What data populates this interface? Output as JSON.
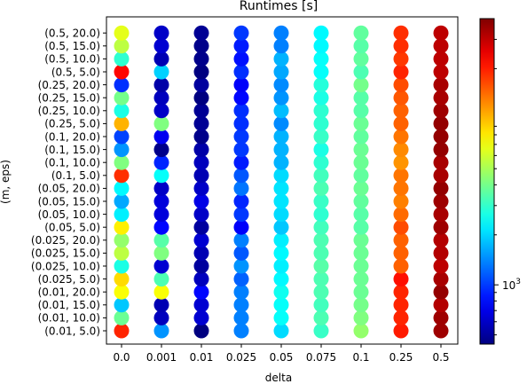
{
  "chart_data": {
    "type": "scatter",
    "title": "Runtimes [s]",
    "xlabel": "delta",
    "ylabel": "(m, eps)",
    "x_categories": [
      "0.0",
      "0.001",
      "0.01",
      "0.025",
      "0.05",
      "0.075",
      "0.1",
      "0.25",
      "0.5"
    ],
    "y_categories": [
      "(0.01, 5.0)",
      "(0.01, 10.0)",
      "(0.01, 15.0)",
      "(0.01, 20.0)",
      "(0.025, 5.0)",
      "(0.025, 10.0)",
      "(0.025, 15.0)",
      "(0.025, 20.0)",
      "(0.05, 5.0)",
      "(0.05, 10.0)",
      "(0.05, 15.0)",
      "(0.05, 20.0)",
      "(0.1, 5.0)",
      "(0.1, 10.0)",
      "(0.1, 15.0)",
      "(0.1, 20.0)",
      "(0.25, 5.0)",
      "(0.25, 10.0)",
      "(0.25, 15.0)",
      "(0.25, 20.0)",
      "(0.5, 5.0)",
      "(0.5, 10.0)",
      "(0.5, 15.0)",
      "(0.5, 20.0)"
    ],
    "color_scale": {
      "colormap": "jet",
      "scale": "log",
      "label": "",
      "tick_label": "10",
      "tick_exponent": "3",
      "tick_value": 1000,
      "range": [
        440,
        40000
      ]
    },
    "values": [
      [
        0.84,
        0.27,
        0.0,
        0.25,
        0.34,
        0.43,
        0.52,
        0.85,
        0.97
      ],
      [
        0.48,
        0.06,
        0.08,
        0.25,
        0.38,
        0.45,
        0.5,
        0.84,
        0.97
      ],
      [
        0.32,
        0.05,
        0.08,
        0.25,
        0.38,
        0.44,
        0.49,
        0.84,
        0.95
      ],
      [
        0.62,
        0.62,
        0.13,
        0.25,
        0.39,
        0.45,
        0.48,
        0.84,
        0.98
      ],
      [
        0.66,
        0.45,
        0.06,
        0.22,
        0.37,
        0.45,
        0.48,
        0.86,
        0.96
      ],
      [
        0.4,
        0.08,
        0.03,
        0.27,
        0.36,
        0.46,
        0.48,
        0.78,
        0.94
      ],
      [
        0.56,
        0.5,
        0.05,
        0.21,
        0.37,
        0.45,
        0.48,
        0.78,
        0.95
      ],
      [
        0.52,
        0.46,
        0.08,
        0.25,
        0.36,
        0.45,
        0.48,
        0.78,
        0.95
      ],
      [
        0.64,
        0.13,
        0.03,
        0.12,
        0.32,
        0.44,
        0.46,
        0.8,
        0.97
      ],
      [
        0.36,
        0.09,
        0.07,
        0.18,
        0.34,
        0.42,
        0.46,
        0.77,
        0.96
      ],
      [
        0.29,
        0.09,
        0.1,
        0.16,
        0.35,
        0.43,
        0.47,
        0.75,
        0.97
      ],
      [
        0.37,
        0.07,
        0.07,
        0.24,
        0.35,
        0.45,
        0.48,
        0.76,
        0.98
      ],
      [
        0.83,
        0.38,
        0.05,
        0.21,
        0.34,
        0.44,
        0.47,
        0.76,
        0.96
      ],
      [
        0.5,
        0.16,
        0.06,
        0.15,
        0.3,
        0.42,
        0.48,
        0.73,
        0.96
      ],
      [
        0.27,
        0.01,
        0.04,
        0.18,
        0.3,
        0.4,
        0.48,
        0.74,
        0.98
      ],
      [
        0.19,
        0.11,
        0.01,
        0.18,
        0.3,
        0.43,
        0.47,
        0.76,
        0.98
      ],
      [
        0.7,
        0.5,
        0.02,
        0.17,
        0.26,
        0.42,
        0.48,
        0.78,
        0.98
      ],
      [
        0.4,
        0.07,
        0.02,
        0.17,
        0.31,
        0.42,
        0.46,
        0.78,
        0.97
      ],
      [
        0.49,
        0.06,
        0.0,
        0.13,
        0.27,
        0.4,
        0.46,
        0.79,
        0.96
      ],
      [
        0.17,
        0.04,
        0.03,
        0.12,
        0.26,
        0.41,
        0.49,
        0.8,
        0.96
      ],
      [
        0.87,
        0.33,
        0.0,
        0.17,
        0.29,
        0.38,
        0.45,
        0.84,
        0.94
      ],
      [
        0.42,
        0.05,
        0.01,
        0.14,
        0.3,
        0.38,
        0.47,
        0.82,
        0.94
      ],
      [
        0.56,
        0.08,
        0.01,
        0.15,
        0.25,
        0.37,
        0.46,
        0.83,
        0.94
      ],
      [
        0.6,
        0.07,
        0.02,
        0.18,
        0.25,
        0.37,
        0.47,
        0.83,
        0.94
      ]
    ]
  }
}
